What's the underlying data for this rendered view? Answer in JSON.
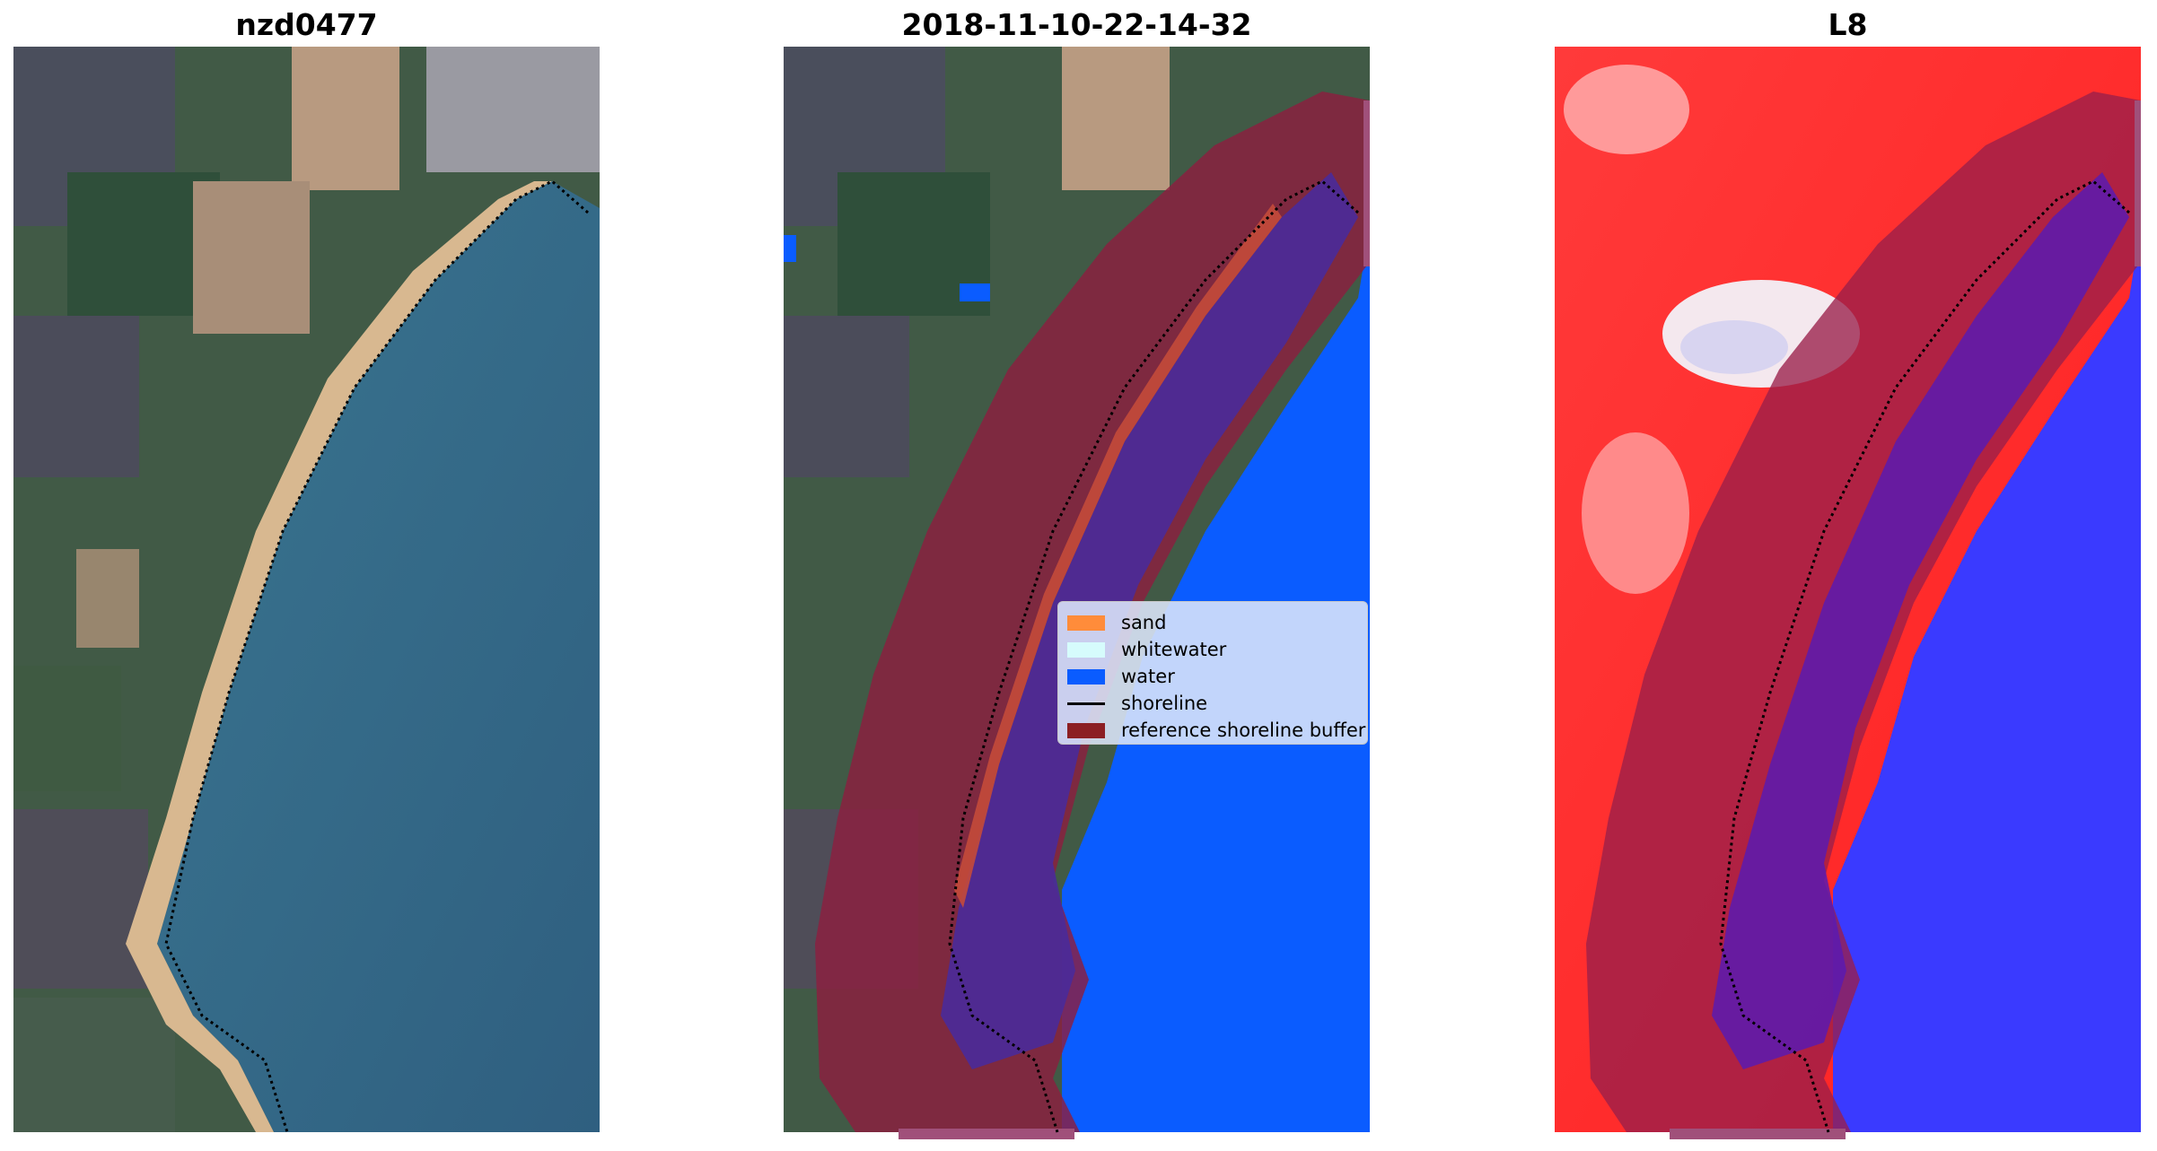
{
  "panels": [
    {
      "title": "nzd0477"
    },
    {
      "title": "2018-11-10-22-14-32"
    },
    {
      "title": "L8"
    }
  ],
  "legend": {
    "items": [
      {
        "label": "sand",
        "color": "#ff8c3a"
      },
      {
        "label": "whitewater",
        "color": "#d6fcfc"
      },
      {
        "label": "water",
        "color": "#0a5cff"
      },
      {
        "label": "shoreline",
        "color": "#000000"
      },
      {
        "label": "reference shoreline buffer",
        "color": "#8c1f23"
      }
    ]
  },
  "colors": {
    "land_green": "#3d5a3a",
    "ocean_blue": "#3a6f8c",
    "beach_sand": "#d9b98c",
    "buffer_red": "#8c1f40",
    "water_class": "#0a5cff",
    "index_red": "#ff2a2a",
    "index_blue": "#3a3aff"
  }
}
